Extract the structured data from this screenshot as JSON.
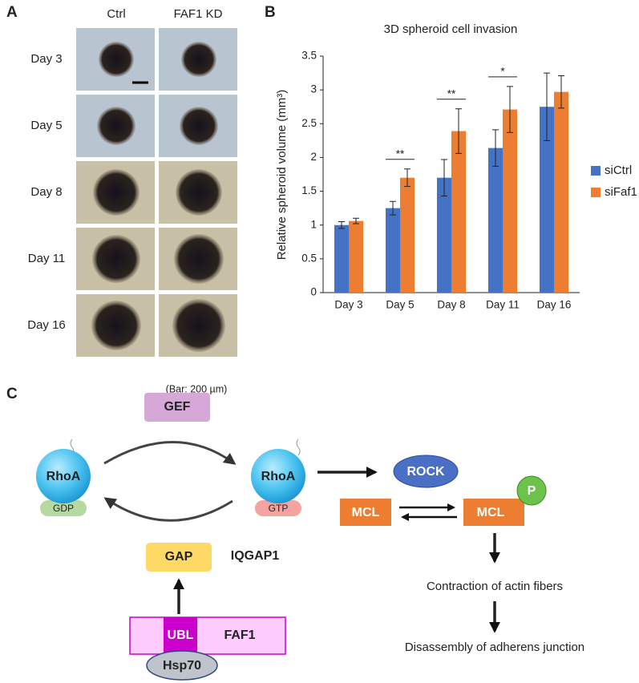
{
  "panels": [
    "A",
    "B",
    "C"
  ],
  "panel_a": {
    "columns": [
      "Ctrl",
      "FAF1 KD"
    ],
    "rows": [
      "Day 3",
      "Day 5",
      "Day 8",
      "Day 11",
      "Day 16"
    ],
    "scale_note": "(Bar: 200 µm)"
  },
  "chart_data": {
    "type": "bar",
    "title": "3D spheroid cell invasion",
    "y_label": "Relative spheroid volume (mm³)",
    "categories": [
      "Day 3",
      "Day 5",
      "Day 8",
      "Day 11",
      "Day 16"
    ],
    "series": [
      {
        "name": "siCtrl",
        "color": "#4472c4",
        "values": [
          1.0,
          1.25,
          1.7,
          2.14,
          2.75
        ],
        "errors": [
          0.05,
          0.1,
          0.27,
          0.27,
          0.5
        ]
      },
      {
        "name": "siFaf1",
        "color": "#ed7d31",
        "values": [
          1.06,
          1.7,
          2.39,
          2.71,
          2.97
        ],
        "errors": [
          0.04,
          0.13,
          0.33,
          0.34,
          0.24
        ]
      }
    ],
    "significance": [
      null,
      "**",
      "**",
      "*",
      null
    ],
    "ylim": [
      0,
      3.5
    ],
    "yticks": [
      0,
      0.5,
      1,
      1.5,
      2,
      2.5,
      3,
      3.5
    ],
    "grid": false,
    "legend": "right"
  },
  "panel_c": {
    "gef": "GEF",
    "rhoa_left": "RhoA",
    "gdp": "GDP",
    "rhoa_right": "RhoA",
    "gtp": "GTP",
    "rock": "ROCK",
    "mcl_left": "MCL",
    "mcl_right": "MCL",
    "phospho": "P",
    "gap": "GAP",
    "iqgap1": "IQGAP1",
    "ubl": "UBL",
    "faf1": "FAF1",
    "hsp70": "Hsp70",
    "outcome_1": "Contraction of actin fibers",
    "outcome_2": "Disassembly of adherens junction"
  }
}
